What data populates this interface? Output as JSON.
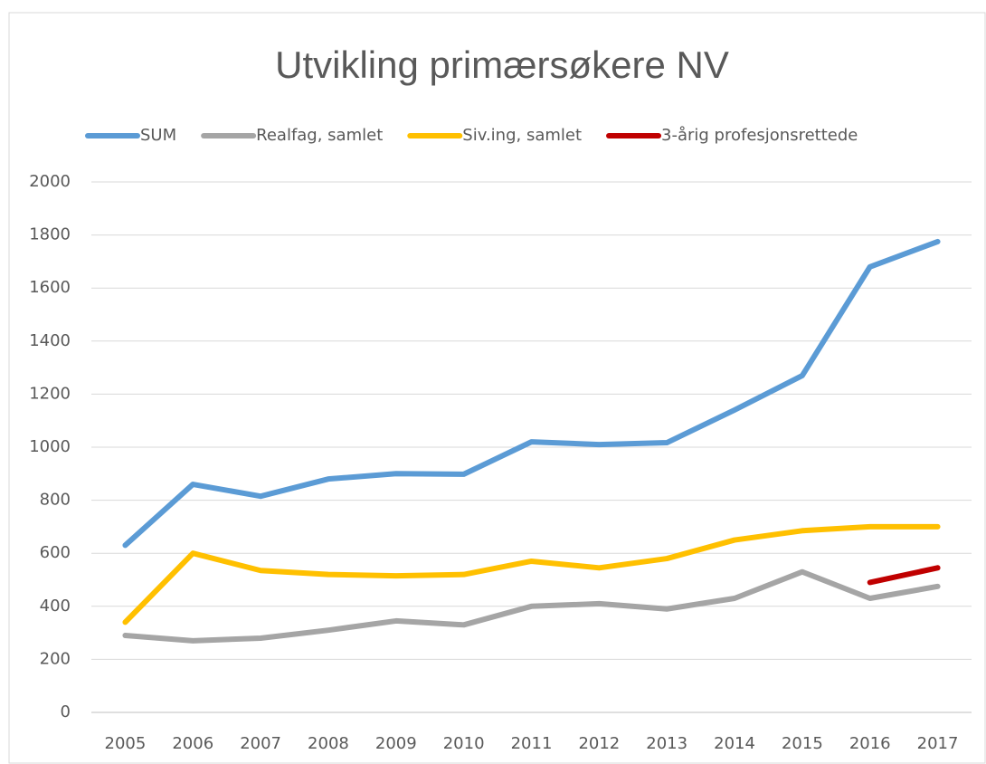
{
  "chart_data": {
    "type": "line",
    "title": "Utvikling primærsøkere NV",
    "categories": [
      "2005",
      "2006",
      "2007",
      "2008",
      "2009",
      "2010",
      "2011",
      "2012",
      "2013",
      "2014",
      "2015",
      "2016",
      "2017"
    ],
    "series": [
      {
        "name": "SUM",
        "color": "#5b9bd5",
        "values": [
          630,
          860,
          815,
          880,
          900,
          898,
          1020,
          1010,
          1017,
          1140,
          1270,
          1680,
          1775
        ]
      },
      {
        "name": "Realfag, samlet",
        "color": "#a5a5a5",
        "values": [
          290,
          270,
          280,
          310,
          345,
          330,
          400,
          410,
          390,
          430,
          530,
          430,
          475
        ]
      },
      {
        "name": "Siv.ing, samlet",
        "color": "#ffc000",
        "values": [
          340,
          600,
          535,
          520,
          515,
          520,
          570,
          545,
          580,
          650,
          685,
          700,
          700
        ]
      },
      {
        "name": "3-årig profesjonsrettede",
        "color": "#c00000",
        "values": [
          null,
          null,
          null,
          null,
          null,
          null,
          null,
          null,
          null,
          null,
          null,
          490,
          545
        ]
      }
    ],
    "ylim": [
      0,
      2000
    ],
    "yticks": [
      0,
      200,
      400,
      600,
      800,
      1000,
      1200,
      1400,
      1600,
      1800,
      2000
    ],
    "grid": true,
    "legend": "top"
  }
}
